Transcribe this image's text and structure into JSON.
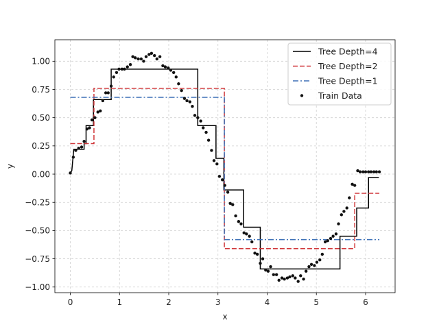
{
  "chart_data": {
    "type": "line",
    "title": "",
    "xlabel": "x",
    "ylabel": "y",
    "xlim": [
      -0.314,
      6.6
    ],
    "ylim": [
      -1.05,
      1.19
    ],
    "xticks": [
      0,
      1,
      2,
      3,
      4,
      5,
      6
    ],
    "xtick_labels": [
      "0",
      "1",
      "2",
      "3",
      "4",
      "5",
      "6"
    ],
    "yticks": [
      -1.0,
      -0.75,
      -0.5,
      -0.25,
      0.0,
      0.25,
      0.5,
      0.75,
      1.0
    ],
    "ytick_labels": [
      "−1.00",
      "−0.75",
      "−0.50",
      "−0.25",
      "0.00",
      "0.25",
      "0.50",
      "0.75",
      "1.00"
    ],
    "grid": true,
    "legend_position": "top-right",
    "series": [
      {
        "name": "Tree Depth=4",
        "color": "#000000",
        "style": "solid",
        "x": [
          0,
          0.03,
          0.07,
          0.07,
          0.28,
          0.28,
          0.32,
          0.32,
          0.47,
          0.47,
          0.83,
          0.83,
          2.59,
          2.59,
          2.96,
          2.96,
          3.12,
          3.12,
          3.52,
          3.52,
          3.86,
          3.86,
          5.48,
          5.48,
          5.82,
          5.82,
          6.06,
          6.06,
          6.27
        ],
        "y": [
          0.01,
          0.03,
          0.22,
          0.22,
          0.22,
          0.27,
          0.27,
          0.43,
          0.43,
          0.66,
          0.66,
          0.93,
          0.93,
          0.43,
          0.43,
          0.14,
          0.14,
          -0.14,
          -0.14,
          -0.47,
          -0.47,
          -0.84,
          -0.84,
          -0.55,
          -0.55,
          -0.3,
          -0.3,
          -0.03,
          -0.03
        ]
      },
      {
        "name": "Tree Depth=2",
        "color": "#d0373a",
        "style": "dashed",
        "x": [
          0,
          0.48,
          0.48,
          3.13,
          3.13,
          5.78,
          5.78,
          6.28
        ],
        "y": [
          0.27,
          0.27,
          0.76,
          0.76,
          -0.66,
          -0.66,
          -0.17,
          -0.17
        ]
      },
      {
        "name": "Tree Depth=1",
        "color": "#3b6fb6",
        "style": "dashdot",
        "x": [
          0,
          3.13,
          3.13,
          6.28
        ],
        "y": [
          0.68,
          0.68,
          -0.58,
          -0.58
        ]
      },
      {
        "name": "Train Data",
        "color": "#111111",
        "style": "markers",
        "x": [
          0.0,
          0.06,
          0.11,
          0.17,
          0.23,
          0.28,
          0.34,
          0.39,
          0.44,
          0.5,
          0.56,
          0.61,
          0.66,
          0.72,
          0.77,
          0.83,
          0.88,
          0.94,
          0.99,
          1.05,
          1.1,
          1.16,
          1.22,
          1.27,
          1.32,
          1.38,
          1.44,
          1.49,
          1.54,
          1.6,
          1.65,
          1.71,
          1.76,
          1.82,
          1.88,
          1.93,
          1.99,
          2.04,
          2.1,
          2.15,
          2.2,
          2.26,
          2.32,
          2.37,
          2.43,
          2.48,
          2.53,
          2.59,
          2.65,
          2.7,
          2.76,
          2.81,
          2.87,
          2.92,
          2.98,
          3.03,
          3.09,
          3.14,
          3.2,
          3.25,
          3.3,
          3.36,
          3.42,
          3.47,
          3.53,
          3.58,
          3.64,
          3.69,
          3.75,
          3.8,
          3.86,
          3.91,
          3.97,
          4.02,
          4.07,
          4.13,
          4.19,
          4.24,
          4.3,
          4.35,
          4.41,
          4.46,
          4.52,
          4.57,
          4.63,
          4.68,
          4.74,
          4.79,
          4.85,
          4.9,
          4.96,
          5.01,
          5.07,
          5.12,
          5.18,
          5.23,
          5.29,
          5.34,
          5.4,
          5.45,
          5.51,
          5.56,
          5.62,
          5.67,
          5.73,
          5.78,
          5.84,
          5.89,
          5.95,
          6.0,
          6.06,
          6.11,
          6.17,
          6.22,
          6.28
        ],
        "y": [
          0.01,
          0.15,
          0.21,
          0.23,
          0.24,
          0.29,
          0.4,
          0.41,
          0.48,
          0.5,
          0.55,
          0.56,
          0.65,
          0.72,
          0.72,
          0.78,
          0.86,
          0.9,
          0.93,
          0.93,
          0.93,
          0.95,
          0.97,
          1.04,
          1.03,
          1.02,
          1.02,
          1.0,
          1.04,
          1.06,
          1.07,
          1.05,
          1.02,
          1.04,
          0.96,
          0.95,
          0.94,
          0.92,
          0.9,
          0.86,
          0.8,
          0.74,
          0.67,
          0.65,
          0.64,
          0.6,
          0.52,
          0.5,
          0.47,
          0.41,
          0.37,
          0.3,
          0.21,
          0.12,
          0.09,
          -0.02,
          -0.05,
          -0.1,
          -0.16,
          -0.26,
          -0.27,
          -0.37,
          -0.42,
          -0.44,
          -0.52,
          -0.53,
          -0.55,
          -0.6,
          -0.7,
          -0.71,
          -0.79,
          -0.75,
          -0.85,
          -0.86,
          -0.82,
          -0.89,
          -0.89,
          -0.94,
          -0.92,
          -0.93,
          -0.92,
          -0.91,
          -0.9,
          -0.92,
          -0.95,
          -0.9,
          -0.93,
          -0.86,
          -0.82,
          -0.8,
          -0.81,
          -0.78,
          -0.76,
          -0.71,
          -0.6,
          -0.59,
          -0.57,
          -0.55,
          -0.53,
          -0.44,
          -0.36,
          -0.33,
          -0.3,
          -0.21,
          -0.09,
          -0.1,
          0.03,
          0.02,
          0.02,
          0.02,
          0.02,
          0.02,
          0.02,
          0.02,
          0.02
        ]
      }
    ]
  }
}
